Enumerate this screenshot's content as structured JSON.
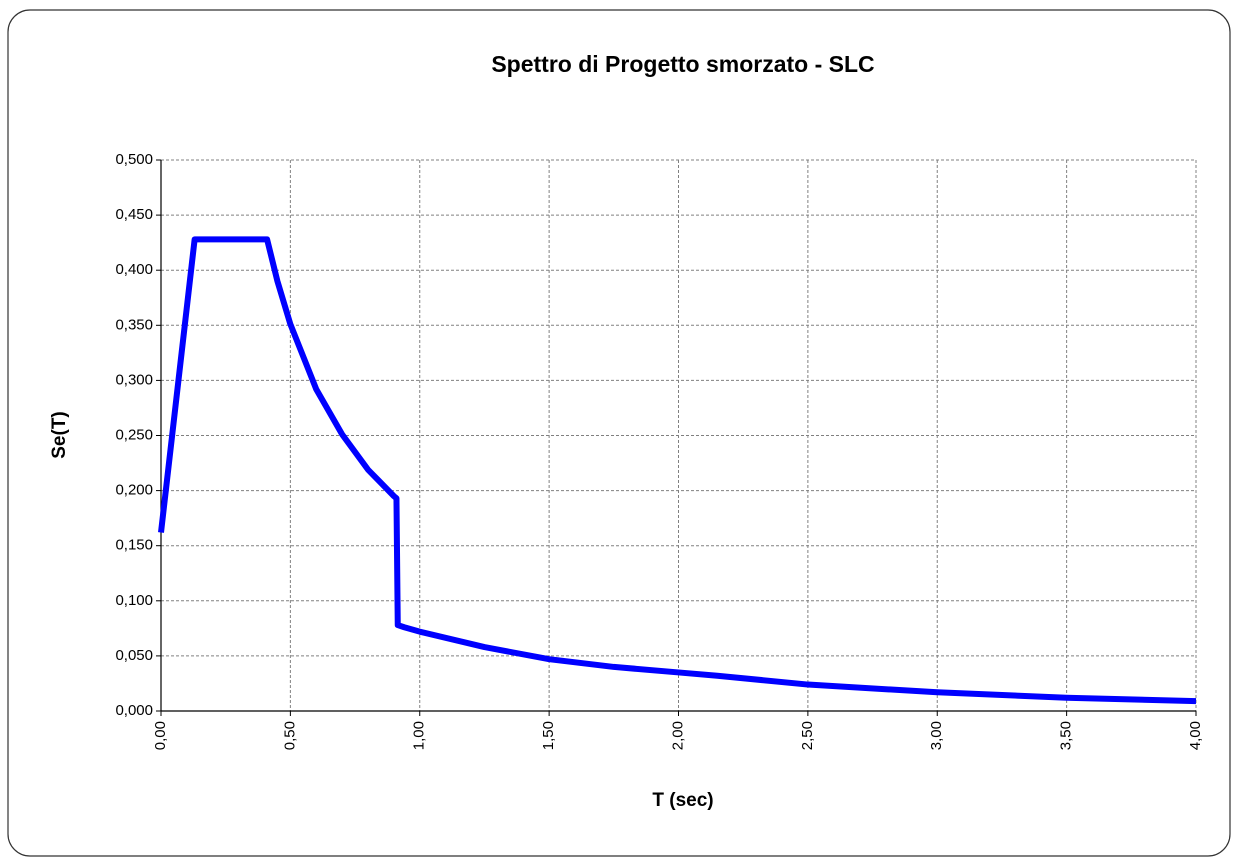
{
  "chart_data": {
    "type": "line",
    "title": "Spettro di Progetto smorzato - SLC",
    "x_label": "T (sec)",
    "y_label": "Se(T)",
    "x": [
      0,
      0.13,
      0.41,
      0.45,
      0.5,
      0.6,
      0.7,
      0.8,
      0.9,
      0.91,
      0.915,
      0.94,
      1.0,
      1.25,
      1.5,
      1.75,
      2.0,
      2.15,
      2.5,
      3.0,
      3.5,
      4.0
    ],
    "values": [
      0.162,
      0.428,
      0.428,
      0.39,
      0.351,
      0.292,
      0.251,
      0.219,
      0.195,
      0.193,
      0.078,
      0.076,
      0.072,
      0.058,
      0.047,
      0.04,
      0.035,
      0.032,
      0.024,
      0.017,
      0.012,
      0.009
    ],
    "color": "#0000ff",
    "xlim": [
      0,
      4
    ],
    "ylim": [
      0,
      0.5
    ],
    "xticks": [
      {
        "value": 0,
        "label": "0,00"
      },
      {
        "value": 0.5,
        "label": "0,50"
      },
      {
        "value": 1,
        "label": "1,00"
      },
      {
        "value": 1.5,
        "label": "1,50"
      },
      {
        "value": 2,
        "label": "2,00"
      },
      {
        "value": 2.5,
        "label": "2,50"
      },
      {
        "value": 3,
        "label": "3,00"
      },
      {
        "value": 3.5,
        "label": "3,50"
      },
      {
        "value": 4,
        "label": "4,00"
      }
    ],
    "yticks": [
      {
        "value": 0,
        "label": "0,000"
      },
      {
        "value": 0.05,
        "label": "0,050"
      },
      {
        "value": 0.1,
        "label": "0,100"
      },
      {
        "value": 0.15,
        "label": "0,150"
      },
      {
        "value": 0.2,
        "label": "0,200"
      },
      {
        "value": 0.25,
        "label": "0,250"
      },
      {
        "value": 0.3,
        "label": "0,300"
      },
      {
        "value": 0.35,
        "label": "0,350"
      },
      {
        "value": 0.4,
        "label": "0,400"
      },
      {
        "value": 0.45,
        "label": "0,450"
      },
      {
        "value": 0.5,
        "label": "0,500"
      }
    ],
    "grid": true
  }
}
